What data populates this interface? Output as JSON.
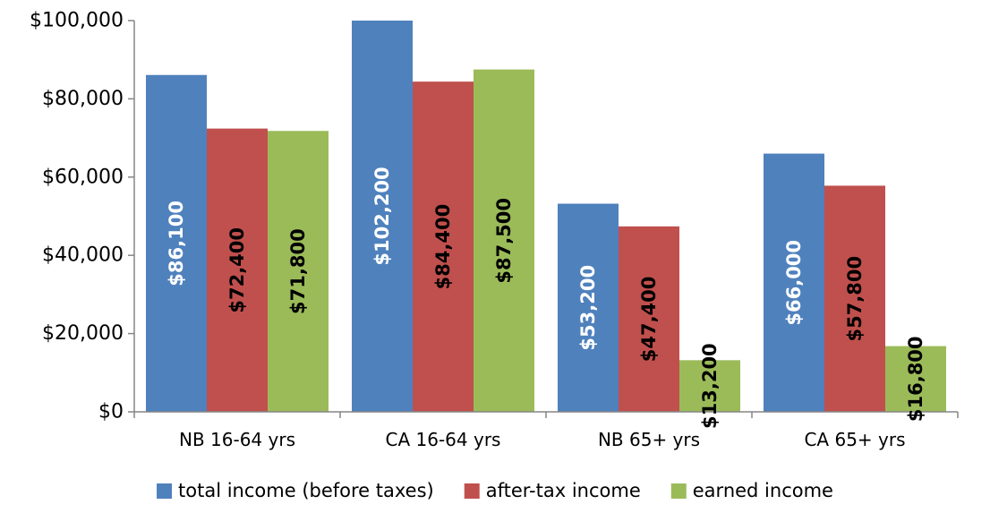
{
  "chart_data": {
    "type": "bar",
    "title": "",
    "xlabel": "",
    "ylabel": "",
    "ylim": [
      0,
      100000
    ],
    "yticks": [
      "$0",
      "$20,000",
      "$40,000",
      "$60,000",
      "$80,000",
      "$100,000"
    ],
    "ytick_values": [
      0,
      20000,
      40000,
      60000,
      80000,
      100000
    ],
    "categories": [
      "NB 16-64 yrs",
      "CA 16-64 yrs",
      "NB 65+ yrs",
      "CA 65+ yrs"
    ],
    "grid": false,
    "legend_position": "bottom",
    "series": [
      {
        "name": "total income (before taxes)",
        "color": "#4F81BD",
        "label_color": "#ffffff",
        "values": [
          86100,
          102200,
          53200,
          66000
        ],
        "labels": [
          "$86,100",
          "$102,200",
          "$53,200",
          "$66,000"
        ]
      },
      {
        "name": "after-tax income",
        "color": "#C0504D",
        "label_color": "#000000",
        "values": [
          72400,
          84400,
          47400,
          57800
        ],
        "labels": [
          "$72,400",
          "$84,400",
          "$47,400",
          "$57,800"
        ]
      },
      {
        "name": "earned income",
        "color": "#9BBB59",
        "label_color": "#000000",
        "values": [
          71800,
          87500,
          13200,
          16800
        ],
        "labels": [
          "$71,800",
          "$87,500",
          "$13,200",
          "$16,800"
        ]
      }
    ]
  }
}
